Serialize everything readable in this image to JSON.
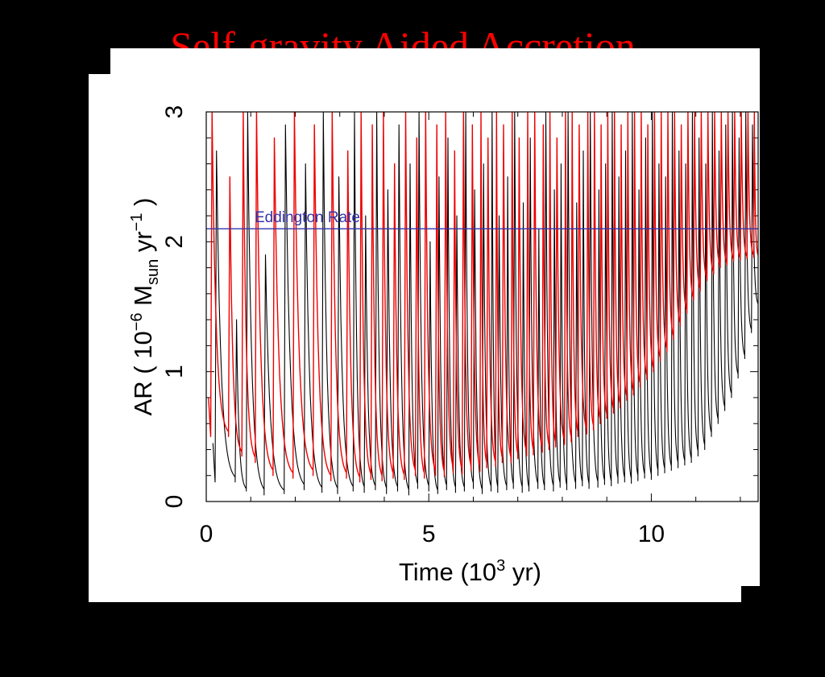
{
  "slide": {
    "title": "Self-gravity Aided Accretion"
  },
  "chart_data": {
    "type": "line",
    "title": "",
    "xlabel_main": "Time (10",
    "xlabel_sup": "3",
    "xlabel_end": " yr)",
    "ylabel_main": "AR ( 10",
    "ylabel_sup1": "−6",
    "ylabel_mid": " M",
    "ylabel_sub": "sun",
    "ylabel_mid2": " yr",
    "ylabel_sup2": "−1",
    "ylabel_end": " )",
    "xlim": [
      0,
      12.4
    ],
    "ylim": [
      0,
      3
    ],
    "xticks": [
      0,
      5,
      10
    ],
    "yticks": [
      0,
      1,
      2,
      3
    ],
    "xtick_labels": [
      "0",
      "5",
      "10"
    ],
    "ytick_labels": [
      "0",
      "1",
      "2",
      "3"
    ],
    "reference_line": {
      "label": "Eddington Rate",
      "value": 2.1,
      "color": "#3333aa"
    },
    "series": [
      {
        "color": "#000000",
        "burst_times": [
          0.2,
          0.65,
          0.9,
          1.3,
          1.75,
          2.2,
          2.6,
          2.95,
          3.3,
          3.55,
          3.8,
          4.05,
          4.3,
          4.55,
          4.75,
          5.0,
          5.2,
          5.4,
          5.6,
          5.8,
          6.0,
          6.2,
          6.4,
          6.55,
          6.75,
          6.9,
          7.1,
          7.25,
          7.45,
          7.6,
          7.8,
          7.95,
          8.1,
          8.3,
          8.45,
          8.6,
          8.8,
          8.95,
          9.1,
          9.25,
          9.4,
          9.55,
          9.7,
          9.85,
          10.0,
          10.15,
          10.3,
          10.45,
          10.6,
          10.75,
          10.9,
          11.05,
          11.2,
          11.35,
          11.5,
          11.65,
          11.8,
          11.95,
          12.1,
          12.25
        ],
        "peaks": [
          2.7,
          1.4,
          3.0,
          1.9,
          2.9,
          2.6,
          3.0,
          2.5,
          3.0,
          2.2,
          3.0,
          2.4,
          2.9,
          2.6,
          3.0,
          2.0,
          2.5,
          2.8,
          2.2,
          3.0,
          2.4,
          2.6,
          3.0,
          2.2,
          2.5,
          3.0,
          2.3,
          2.8,
          2.1,
          3.0,
          2.4,
          2.6,
          3.0,
          2.3,
          2.7,
          3.0,
          2.4,
          2.6,
          3.0,
          2.5,
          2.7,
          3.0,
          2.4,
          2.8,
          3.0,
          2.6,
          2.5,
          3.0,
          2.7,
          2.6,
          3.0,
          2.8,
          2.6,
          3.0,
          2.7,
          2.9,
          3.0,
          2.8,
          3.0,
          2.9
        ],
        "troughs": [
          0.15,
          0.08,
          0.05,
          0.06,
          0.09,
          0.07,
          0.06,
          0.08,
          0.07,
          0.09,
          0.06,
          0.08,
          0.05,
          0.1,
          0.08,
          0.06,
          0.09,
          0.07,
          0.08,
          0.1,
          0.06,
          0.08,
          0.07,
          0.09,
          0.1,
          0.07,
          0.08,
          0.1,
          0.09,
          0.08,
          0.11,
          0.09,
          0.1,
          0.12,
          0.1,
          0.11,
          0.13,
          0.12,
          0.14,
          0.15,
          0.14,
          0.16,
          0.18,
          0.17,
          0.2,
          0.22,
          0.24,
          0.26,
          0.28,
          0.3,
          0.35,
          0.4,
          0.5,
          0.6,
          0.7,
          0.8,
          0.95,
          1.1,
          1.3,
          1.5
        ]
      },
      {
        "color": "#ee0000",
        "burst_times": [
          0.1,
          0.5,
          0.8,
          1.1,
          1.5,
          1.95,
          2.4,
          2.8,
          3.15,
          3.45,
          3.7,
          3.95,
          4.2,
          4.45,
          4.7,
          4.9,
          5.15,
          5.35,
          5.55,
          5.75,
          5.95,
          6.15,
          6.3,
          6.5,
          6.65,
          6.85,
          7.0,
          7.2,
          7.35,
          7.55,
          7.7,
          7.85,
          8.05,
          8.2,
          8.35,
          8.55,
          8.7,
          8.85,
          9.0,
          9.15,
          9.3,
          9.45,
          9.6,
          9.75,
          9.9,
          10.05,
          10.2,
          10.35,
          10.5,
          10.65,
          10.8,
          10.95,
          11.1,
          11.25,
          11.4,
          11.55,
          11.7,
          11.85,
          12.0,
          12.15,
          12.3
        ],
        "peaks": [
          3.0,
          2.5,
          3.0,
          3.0,
          2.8,
          3.0,
          2.9,
          3.0,
          2.7,
          3.0,
          2.9,
          3.0,
          2.6,
          3.0,
          2.8,
          3.0,
          2.9,
          3.0,
          2.7,
          3.0,
          2.9,
          3.0,
          2.8,
          3.0,
          2.9,
          3.0,
          2.8,
          3.0,
          3.0,
          2.9,
          3.0,
          2.8,
          3.0,
          3.0,
          2.9,
          3.0,
          3.0,
          2.9,
          3.0,
          3.0,
          2.9,
          3.0,
          3.0,
          3.0,
          2.9,
          3.0,
          3.0,
          3.0,
          3.0,
          2.9,
          3.0,
          3.0,
          3.0,
          3.0,
          3.0,
          3.0,
          3.0,
          3.0,
          3.0,
          3.0,
          3.0
        ],
        "troughs": [
          0.5,
          0.35,
          0.3,
          0.2,
          0.18,
          0.2,
          0.16,
          0.18,
          0.15,
          0.17,
          0.16,
          0.18,
          0.17,
          0.2,
          0.18,
          0.2,
          0.19,
          0.22,
          0.21,
          0.24,
          0.23,
          0.26,
          0.27,
          0.3,
          0.3,
          0.33,
          0.35,
          0.36,
          0.38,
          0.4,
          0.42,
          0.44,
          0.46,
          0.5,
          0.52,
          0.55,
          0.6,
          0.64,
          0.68,
          0.72,
          0.78,
          0.82,
          0.88,
          0.94,
          1.0,
          1.08,
          1.15,
          1.25,
          1.35,
          1.45,
          1.55,
          1.62,
          1.7,
          1.75,
          1.8,
          1.82,
          1.85,
          1.86,
          1.87,
          1.88,
          1.88
        ]
      }
    ]
  }
}
